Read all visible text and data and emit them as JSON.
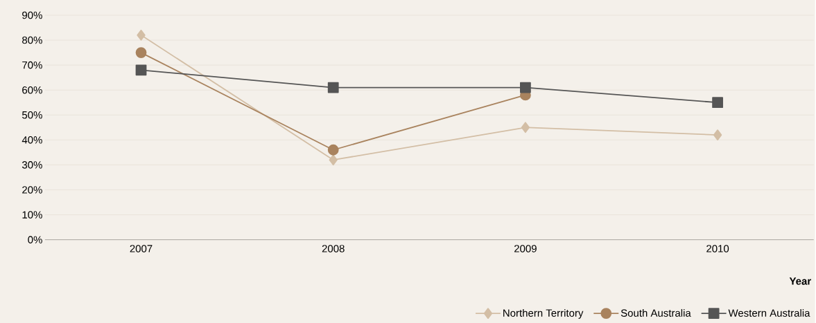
{
  "chart_data": {
    "type": "line",
    "xlabel": "Year",
    "categories": [
      "2007",
      "2008",
      "2009",
      "2010"
    ],
    "ylim": [
      0,
      90
    ],
    "yticks": [
      {
        "value": 0,
        "label": "0%"
      },
      {
        "value": 10,
        "label": "10%"
      },
      {
        "value": 20,
        "label": "20%"
      },
      {
        "value": 30,
        "label": "30%"
      },
      {
        "value": 40,
        "label": "40%"
      },
      {
        "value": 50,
        "label": "50%"
      },
      {
        "value": 60,
        "label": "60%"
      },
      {
        "value": 70,
        "label": "70%"
      },
      {
        "value": 80,
        "label": "80%"
      },
      {
        "value": 90,
        "label": "90%"
      }
    ],
    "grid": "y",
    "legend": "bottom right",
    "line_style": "solid",
    "series": [
      {
        "name": "Northern Territory",
        "color": "#d3bea5",
        "marker": "diamond",
        "values": [
          82,
          32,
          45,
          42
        ]
      },
      {
        "name": "South Australia",
        "color": "#a9835e",
        "marker": "circle",
        "values": [
          75,
          36,
          58,
          null
        ]
      },
      {
        "name": "Western Australia",
        "color": "#555555",
        "marker": "square",
        "values": [
          68,
          61,
          61,
          55
        ]
      }
    ]
  }
}
